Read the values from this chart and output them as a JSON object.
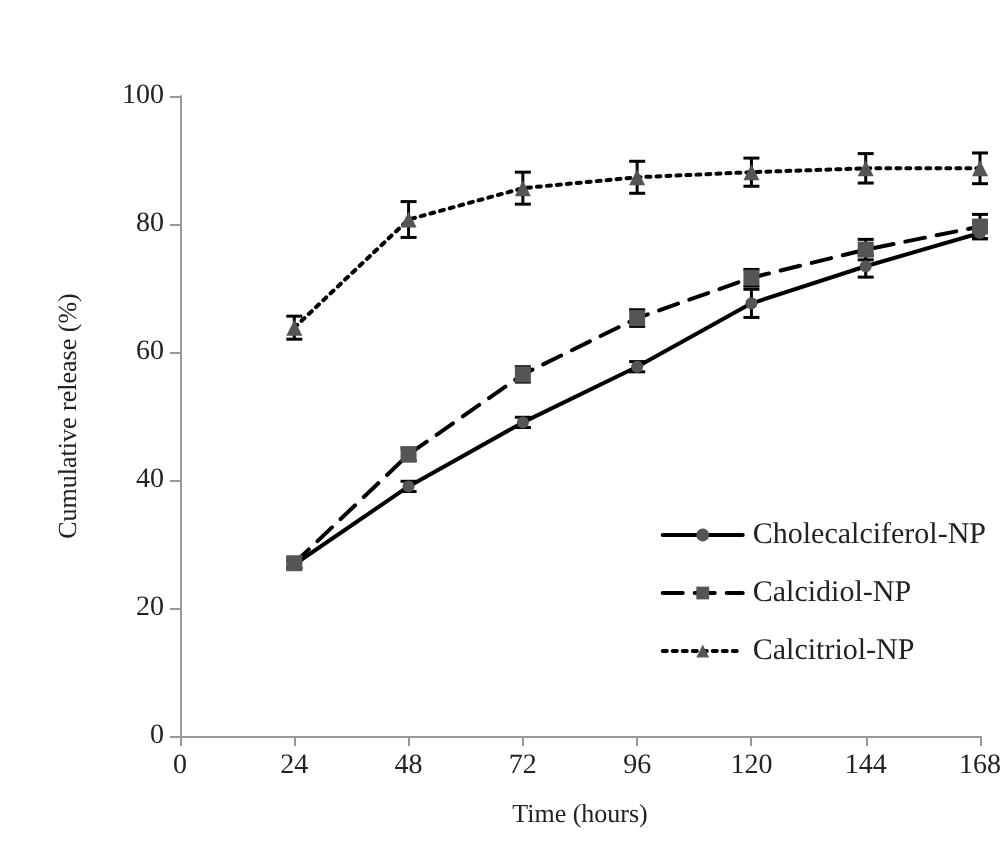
{
  "chart_data": {
    "type": "line",
    "xlabel": "Time (hours)",
    "ylabel": "Cumulative release (%)",
    "x": [
      24,
      48,
      72,
      96,
      120,
      144,
      168
    ],
    "series": [
      {
        "name": "Cholecalciferol-NP",
        "color": "#000000",
        "marker": "circle",
        "line_style": "solid",
        "values": [
          26.8,
          39,
          49,
          57.7,
          67.6,
          73.4,
          78.6
        ],
        "errors": [
          0.5,
          0.8,
          0.8,
          0.8,
          2.2,
          1.7,
          0.9
        ]
      },
      {
        "name": "Calcidiol-NP",
        "color": "#000000",
        "marker": "square",
        "line_style": "dashed",
        "values": [
          27,
          44,
          56.5,
          65.3,
          71.6,
          76,
          79.6
        ],
        "errors": [
          0.8,
          1,
          1.2,
          1.3,
          1.3,
          1.6,
          1.9
        ]
      },
      {
        "name": "Calcitriol-NP",
        "color": "#000000",
        "marker": "triangle",
        "line_style": "dotted",
        "values": [
          63.8,
          80.7,
          85.6,
          87.3,
          88.1,
          88.7,
          88.7
        ],
        "errors": [
          1.8,
          2.8,
          2.5,
          2.5,
          2.2,
          2.3,
          2.4
        ]
      }
    ],
    "xlim": [
      0,
      168
    ],
    "xticks": [
      0,
      24,
      48,
      72,
      96,
      120,
      144,
      168
    ],
    "ylim": [
      0,
      100
    ],
    "yticks": [
      0,
      20,
      40,
      60,
      80,
      100
    ],
    "grid": false,
    "legend": "right"
  }
}
